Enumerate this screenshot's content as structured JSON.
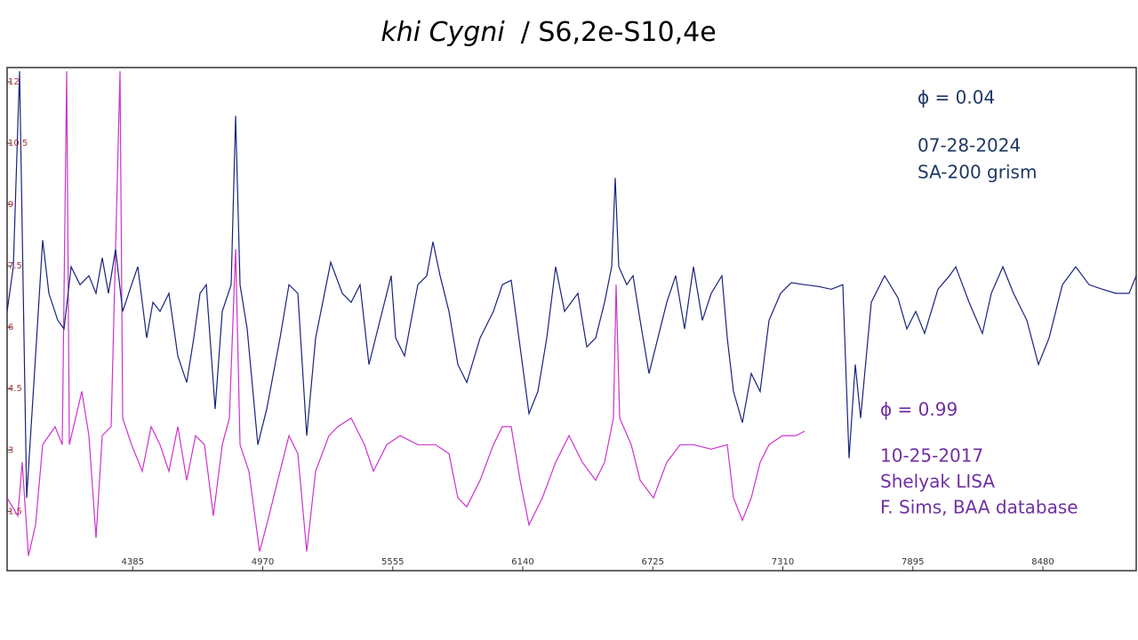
{
  "chart_data": {
    "type": "line",
    "title": "khi Cygni",
    "title_suffix": "/ S6,2e-S10,4e",
    "xlim": [
      3820,
      8900
    ],
    "ylim": [
      0.05,
      12.35
    ],
    "xticks": [
      4385,
      4970,
      5555,
      6140,
      6725,
      7310,
      7895,
      8480
    ],
    "yticks": [
      1.5,
      3,
      4.5,
      6,
      7.5,
      9,
      10.5,
      12
    ],
    "series": [
      {
        "name": "07-28-2024",
        "color": "#1a237e",
        "annotations": [
          "ϕ  = 0.04",
          "SA-200 grism"
        ],
        "x": [
          3820,
          3848,
          3876,
          3908,
          3948,
          3980,
          4008,
          4048,
          4076,
          4108,
          4148,
          4188,
          4220,
          4248,
          4276,
          4308,
          4340,
          4380,
          4408,
          4448,
          4476,
          4508,
          4548,
          4588,
          4628,
          4660,
          4688,
          4716,
          4756,
          4788,
          4828,
          4848,
          4868,
          4900,
          4948,
          4988,
          5048,
          5088,
          5128,
          5168,
          5208,
          5276,
          5328,
          5368,
          5408,
          5448,
          5488,
          5548,
          5568,
          5608,
          5668,
          5708,
          5736,
          5768,
          5808,
          5848,
          5888,
          5948,
          6008,
          6048,
          6088,
          6128,
          6168,
          6208,
          6248,
          6288,
          6328,
          6388,
          6428,
          6468,
          6508,
          6540,
          6556,
          6572,
          6608,
          6636,
          6668,
          6708,
          6748,
          6788,
          6828,
          6868,
          6908,
          6948,
          6988,
          7036,
          7060,
          7088,
          7128,
          7168,
          7208,
          7248,
          7300,
          7348,
          7408,
          7468,
          7528,
          7580,
          7608,
          7636,
          7660,
          7708,
          7768,
          7828,
          7868,
          7908,
          7948,
          8008,
          8060,
          8088,
          8148,
          8208,
          8248,
          8300,
          8348,
          8408,
          8460,
          8508,
          8568,
          8628,
          8688,
          8748,
          8808,
          8868,
          8900
        ],
        "values": [
          6.39,
          7.48,
          12.26,
          1.83,
          5.3,
          8.13,
          6.83,
          6.17,
          5.96,
          7.48,
          7.04,
          7.26,
          6.83,
          7.7,
          6.83,
          7.91,
          6.39,
          7.04,
          7.48,
          5.74,
          6.61,
          6.39,
          6.83,
          5.3,
          4.65,
          5.74,
          6.83,
          7.04,
          4.0,
          6.39,
          7.04,
          11.17,
          7.04,
          5.96,
          3.13,
          4.0,
          5.74,
          7.04,
          6.83,
          3.35,
          5.74,
          7.59,
          6.83,
          6.61,
          7.04,
          5.09,
          5.96,
          7.26,
          5.74,
          5.3,
          7.04,
          7.26,
          8.09,
          7.26,
          6.39,
          5.09,
          4.65,
          5.74,
          6.39,
          7.04,
          7.15,
          5.52,
          3.89,
          4.43,
          5.74,
          7.48,
          6.39,
          6.83,
          5.52,
          5.74,
          6.61,
          7.48,
          9.65,
          7.48,
          7.04,
          7.26,
          6.17,
          4.87,
          5.74,
          6.61,
          7.26,
          5.96,
          7.48,
          6.17,
          6.83,
          7.26,
          5.74,
          4.43,
          3.67,
          4.87,
          4.43,
          6.17,
          6.83,
          7.09,
          7.04,
          7.0,
          6.93,
          7.04,
          2.8,
          5.09,
          3.78,
          6.61,
          7.26,
          6.72,
          5.96,
          6.39,
          5.85,
          6.93,
          7.26,
          7.48,
          6.61,
          5.85,
          6.83,
          7.48,
          6.83,
          6.17,
          5.09,
          5.74,
          7.04,
          7.48,
          7.04,
          6.93,
          6.83,
          6.83,
          7.26
        ]
      },
      {
        "name": "10-25-2017",
        "color": "#cc33cc",
        "annotations": [
          "ϕ = 0.99",
          "Shelyak LISA",
          "F. Sims, BAA database"
        ],
        "x": [
          3820,
          3868,
          3888,
          3916,
          3948,
          3980,
          4008,
          4036,
          4068,
          4088,
          4100,
          4128,
          4156,
          4188,
          4220,
          4248,
          4288,
          4328,
          4340,
          4380,
          4428,
          4468,
          4508,
          4548,
          4588,
          4628,
          4668,
          4708,
          4748,
          4788,
          4820,
          4848,
          4868,
          4908,
          4956,
          4988,
          5048,
          5088,
          5128,
          5168,
          5208,
          5268,
          5308,
          5368,
          5428,
          5468,
          5528,
          5588,
          5668,
          5748,
          5808,
          5848,
          5888,
          5948,
          6008,
          6048,
          6088,
          6128,
          6168,
          6228,
          6288,
          6348,
          6408,
          6468,
          6508,
          6548,
          6560,
          6576,
          6628,
          6668,
          6728,
          6788,
          6848,
          6908,
          6988,
          7060,
          7088,
          7128,
          7168,
          7208,
          7248,
          7308,
          7368,
          7408
        ],
        "values": [
          1.83,
          1.39,
          2.7,
          0.41,
          1.17,
          3.13,
          3.35,
          3.57,
          3.13,
          12.26,
          3.13,
          3.78,
          4.43,
          3.35,
          0.85,
          3.35,
          3.57,
          12.26,
          3.78,
          3.13,
          2.48,
          3.57,
          3.13,
          2.48,
          3.57,
          2.26,
          3.35,
          3.13,
          1.39,
          3.13,
          3.78,
          7.91,
          3.13,
          2.48,
          0.52,
          1.17,
          2.48,
          3.35,
          2.91,
          0.52,
          2.48,
          3.35,
          3.57,
          3.78,
          3.13,
          2.48,
          3.13,
          3.35,
          3.13,
          3.13,
          2.91,
          1.83,
          1.61,
          2.26,
          3.13,
          3.57,
          3.57,
          2.26,
          1.17,
          1.83,
          2.7,
          3.35,
          2.7,
          2.26,
          2.7,
          3.78,
          7.04,
          3.78,
          3.13,
          2.26,
          1.83,
          2.7,
          3.13,
          3.13,
          3.02,
          3.13,
          1.83,
          1.28,
          1.83,
          2.7,
          3.13,
          3.35,
          3.35,
          3.46
        ]
      }
    ]
  }
}
